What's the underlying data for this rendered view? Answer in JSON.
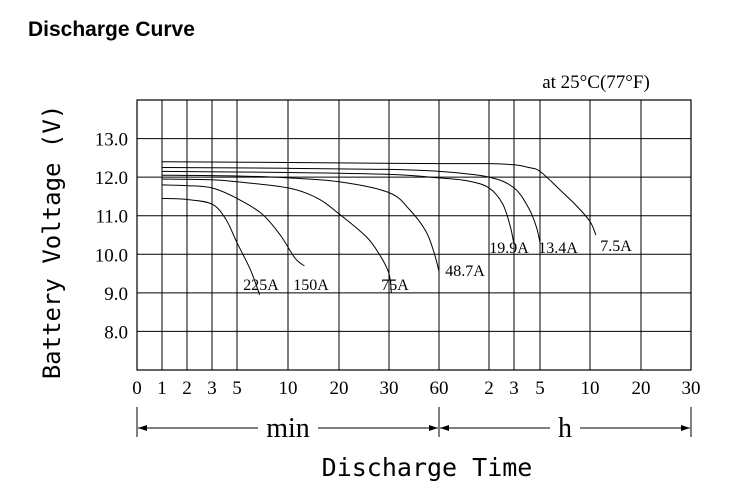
{
  "page": {
    "title": "Discharge Curve"
  },
  "chart_data": {
    "type": "line",
    "title": "Discharge Curve",
    "subtitle": "at 25°C(77°F)",
    "xlabel": "Discharge Time",
    "ylabel": "Battery Voltage (V)",
    "ylim": [
      7,
      14
    ],
    "y_ticks": [
      {
        "value": 8,
        "label": "8.0"
      },
      {
        "value": 9,
        "label": "9.0"
      },
      {
        "value": 10,
        "label": "10.0"
      },
      {
        "value": 11,
        "label": "11.0"
      },
      {
        "value": 12,
        "label": "12.0"
      },
      {
        "value": 13,
        "label": "13.0"
      }
    ],
    "x_ticks": [
      {
        "label": "0",
        "minutes": 0
      },
      {
        "label": "1",
        "minutes": 1
      },
      {
        "label": "2",
        "minutes": 2
      },
      {
        "label": "3",
        "minutes": 3
      },
      {
        "label": "5",
        "minutes": 5
      },
      {
        "label": "10",
        "minutes": 10
      },
      {
        "label": "20",
        "minutes": 20
      },
      {
        "label": "30",
        "minutes": 30
      },
      {
        "label": "60",
        "minutes": 60
      },
      {
        "label": "2",
        "minutes": 120
      },
      {
        "label": "3",
        "minutes": 180
      },
      {
        "label": "5",
        "minutes": 300
      },
      {
        "label": "10",
        "minutes": 600
      },
      {
        "label": "20",
        "minutes": 1200
      },
      {
        "label": "30",
        "minutes": 1800
      }
    ],
    "x_units": [
      {
        "label": "min",
        "from_minutes": 0,
        "to_minutes": 60
      },
      {
        "label": "h",
        "from_minutes": 60,
        "to_minutes": 1800
      }
    ],
    "grid": true,
    "series": [
      {
        "name": "225A",
        "label": "225A",
        "points": [
          [
            1,
            11.45
          ],
          [
            2,
            11.42
          ],
          [
            3,
            11.3
          ],
          [
            4,
            10.9
          ],
          [
            5,
            10.3
          ],
          [
            6,
            9.6
          ],
          [
            6.8,
            8.95
          ]
        ]
      },
      {
        "name": "150A",
        "label": "150A",
        "points": [
          [
            1,
            11.8
          ],
          [
            2,
            11.78
          ],
          [
            3,
            11.72
          ],
          [
            5,
            11.45
          ],
          [
            7,
            11.05
          ],
          [
            9,
            10.5
          ],
          [
            11,
            9.9
          ],
          [
            12.5,
            9.7
          ]
        ]
      },
      {
        "name": "75A",
        "label": "75A",
        "points": [
          [
            1,
            11.95
          ],
          [
            3,
            11.93
          ],
          [
            5,
            11.88
          ],
          [
            10,
            11.72
          ],
          [
            15,
            11.45
          ],
          [
            20,
            11.05
          ],
          [
            25,
            10.45
          ],
          [
            28,
            9.95
          ],
          [
            30,
            9.5
          ],
          [
            31,
            9.0
          ]
        ]
      },
      {
        "name": "48.7A",
        "label": "48.7A",
        "points": [
          [
            1,
            12.05
          ],
          [
            5,
            12.03
          ],
          [
            10,
            11.98
          ],
          [
            20,
            11.88
          ],
          [
            30,
            11.6
          ],
          [
            40,
            11.15
          ],
          [
            50,
            10.6
          ],
          [
            56,
            10.05
          ],
          [
            60,
            9.55
          ]
        ]
      },
      {
        "name": "19.9A",
        "label": "19.9A",
        "points": [
          [
            1,
            12.15
          ],
          [
            10,
            12.12
          ],
          [
            30,
            12.07
          ],
          [
            60,
            11.98
          ],
          [
            90,
            11.9
          ],
          [
            120,
            11.72
          ],
          [
            150,
            11.3
          ],
          [
            170,
            10.7
          ],
          [
            180,
            10.25
          ]
        ]
      },
      {
        "name": "13.4A",
        "label": "13.4A",
        "points": [
          [
            1,
            12.25
          ],
          [
            10,
            12.23
          ],
          [
            30,
            12.2
          ],
          [
            60,
            12.15
          ],
          [
            120,
            12.0
          ],
          [
            180,
            11.72
          ],
          [
            240,
            11.2
          ],
          [
            280,
            10.7
          ],
          [
            300,
            10.3
          ]
        ]
      },
      {
        "name": "7.5A",
        "label": "7.5A",
        "points": [
          [
            1,
            12.4
          ],
          [
            10,
            12.38
          ],
          [
            60,
            12.35
          ],
          [
            120,
            12.35
          ],
          [
            180,
            12.32
          ],
          [
            240,
            12.25
          ],
          [
            300,
            12.15
          ],
          [
            400,
            11.65
          ],
          [
            500,
            11.25
          ],
          [
            600,
            10.85
          ],
          [
            650,
            10.5
          ]
        ]
      }
    ]
  }
}
